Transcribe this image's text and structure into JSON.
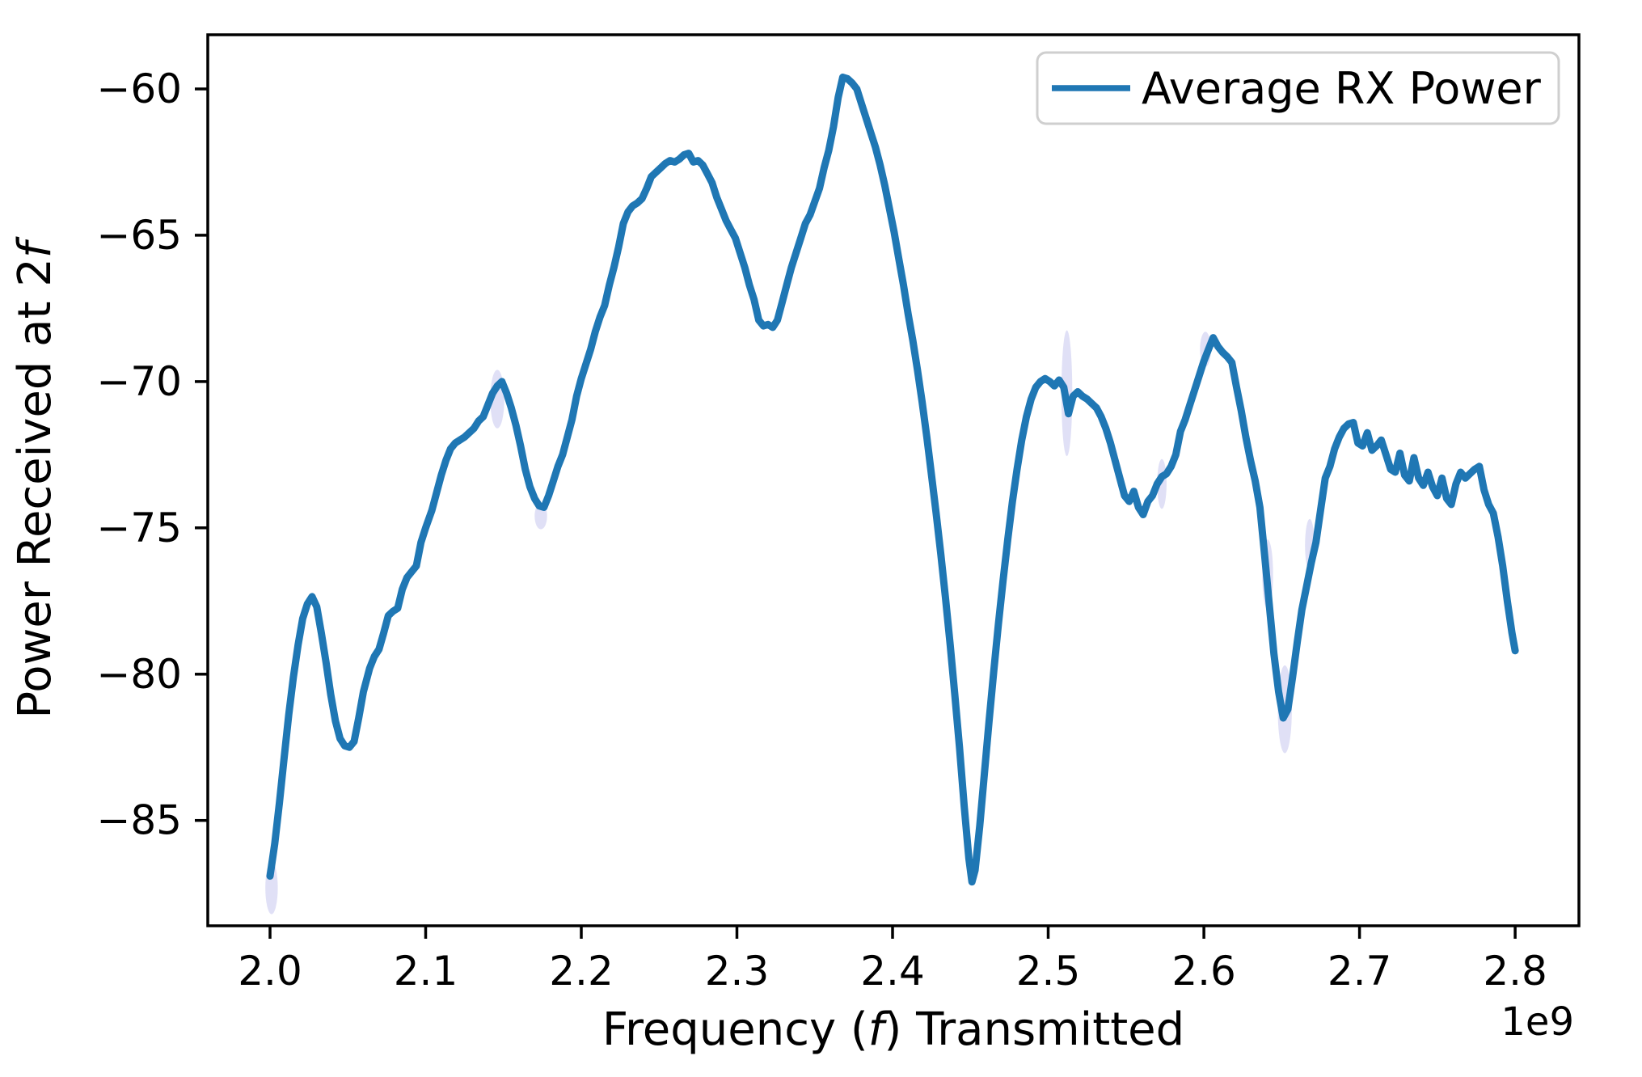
{
  "figure": {
    "background": "#ffffff",
    "xlabel": {
      "prefix": "Frequency (",
      "italic": "f",
      "suffix": ") Transmitted",
      "full": "Frequency (f) Transmitted"
    },
    "ylabel": {
      "prefix": "Power Received at 2",
      "italic": "f",
      "full": "Power Received at 2f"
    },
    "offset_text": "1e9",
    "legend": {
      "label": "Average RX Power",
      "position": "upper right"
    },
    "colors": {
      "line": "#1f77b4",
      "uncertainty_band": "#8e8ee0",
      "axis": "#000000",
      "legend_border": "#cfcfcf",
      "legend_background": "#ffffff"
    }
  },
  "chart_data": {
    "type": "line",
    "title": "",
    "xlabel": "Frequency (f) Transmitted",
    "ylabel": "Power Received at 2f",
    "x_offset_label": "1e9",
    "grid": false,
    "legend_position": "upper right",
    "xlim": [
      1.96,
      2.841
    ],
    "ylim": [
      -88.6,
      -58.15
    ],
    "x_ticks": [
      2.0,
      2.1,
      2.2,
      2.3,
      2.4,
      2.5,
      2.6,
      2.7,
      2.8
    ],
    "y_ticks": [
      -85,
      -80,
      -75,
      -70,
      -65,
      -60
    ],
    "series": [
      {
        "name": "Average RX Power",
        "color": "#1f77b4",
        "points": [
          [
            2.0,
            -86.9
          ],
          [
            2.003,
            -85.8
          ],
          [
            2.006,
            -84.4
          ],
          [
            2.009,
            -82.9
          ],
          [
            2.012,
            -81.4
          ],
          [
            2.015,
            -80.1
          ],
          [
            2.018,
            -79.0
          ],
          [
            2.021,
            -78.1
          ],
          [
            2.024,
            -77.6
          ],
          [
            2.027,
            -77.35
          ],
          [
            2.03,
            -77.7
          ],
          [
            2.033,
            -78.6
          ],
          [
            2.036,
            -79.6
          ],
          [
            2.039,
            -80.7
          ],
          [
            2.042,
            -81.6
          ],
          [
            2.045,
            -82.2
          ],
          [
            2.048,
            -82.45
          ],
          [
            2.051,
            -82.5
          ],
          [
            2.054,
            -82.3
          ],
          [
            2.057,
            -81.5
          ],
          [
            2.06,
            -80.6
          ],
          [
            2.064,
            -79.8
          ],
          [
            2.067,
            -79.4
          ],
          [
            2.07,
            -79.15
          ],
          [
            2.073,
            -78.6
          ],
          [
            2.076,
            -78.0
          ],
          [
            2.079,
            -77.85
          ],
          [
            2.082,
            -77.75
          ],
          [
            2.085,
            -77.1
          ],
          [
            2.088,
            -76.7
          ],
          [
            2.091,
            -76.5
          ],
          [
            2.094,
            -76.3
          ],
          [
            2.097,
            -75.5
          ],
          [
            2.1,
            -75.0
          ],
          [
            2.104,
            -74.4
          ],
          [
            2.107,
            -73.8
          ],
          [
            2.11,
            -73.2
          ],
          [
            2.113,
            -72.7
          ],
          [
            2.116,
            -72.3
          ],
          [
            2.119,
            -72.1
          ],
          [
            2.122,
            -72.0
          ],
          [
            2.125,
            -71.9
          ],
          [
            2.128,
            -71.75
          ],
          [
            2.131,
            -71.6
          ],
          [
            2.134,
            -71.35
          ],
          [
            2.137,
            -71.2
          ],
          [
            2.14,
            -70.8
          ],
          [
            2.143,
            -70.4
          ],
          [
            2.146,
            -70.15
          ],
          [
            2.149,
            -70.0
          ],
          [
            2.152,
            -70.4
          ],
          [
            2.155,
            -70.9
          ],
          [
            2.158,
            -71.5
          ],
          [
            2.161,
            -72.2
          ],
          [
            2.164,
            -73.0
          ],
          [
            2.167,
            -73.6
          ],
          [
            2.17,
            -74.0
          ],
          [
            2.173,
            -74.25
          ],
          [
            2.176,
            -74.3
          ],
          [
            2.179,
            -73.9
          ],
          [
            2.182,
            -73.4
          ],
          [
            2.185,
            -72.9
          ],
          [
            2.188,
            -72.5
          ],
          [
            2.191,
            -71.9
          ],
          [
            2.194,
            -71.3
          ],
          [
            2.197,
            -70.5
          ],
          [
            2.2,
            -69.9
          ],
          [
            2.203,
            -69.4
          ],
          [
            2.206,
            -68.9
          ],
          [
            2.209,
            -68.3
          ],
          [
            2.212,
            -67.8
          ],
          [
            2.215,
            -67.4
          ],
          [
            2.218,
            -66.7
          ],
          [
            2.221,
            -66.1
          ],
          [
            2.224,
            -65.4
          ],
          [
            2.227,
            -64.6
          ],
          [
            2.23,
            -64.2
          ],
          [
            2.233,
            -64.0
          ],
          [
            2.236,
            -63.9
          ],
          [
            2.239,
            -63.75
          ],
          [
            2.242,
            -63.4
          ],
          [
            2.245,
            -63.0
          ],
          [
            2.248,
            -62.85
          ],
          [
            2.251,
            -62.7
          ],
          [
            2.254,
            -62.55
          ],
          [
            2.257,
            -62.45
          ],
          [
            2.26,
            -62.5
          ],
          [
            2.263,
            -62.4
          ],
          [
            2.266,
            -62.25
          ],
          [
            2.269,
            -62.2
          ],
          [
            2.272,
            -62.5
          ],
          [
            2.275,
            -62.45
          ],
          [
            2.278,
            -62.6
          ],
          [
            2.281,
            -62.9
          ],
          [
            2.284,
            -63.2
          ],
          [
            2.287,
            -63.7
          ],
          [
            2.29,
            -64.1
          ],
          [
            2.293,
            -64.5
          ],
          [
            2.296,
            -64.8
          ],
          [
            2.299,
            -65.1
          ],
          [
            2.302,
            -65.6
          ],
          [
            2.305,
            -66.1
          ],
          [
            2.308,
            -66.7
          ],
          [
            2.311,
            -67.2
          ],
          [
            2.314,
            -67.9
          ],
          [
            2.317,
            -68.1
          ],
          [
            2.32,
            -68.05
          ],
          [
            2.323,
            -68.15
          ],
          [
            2.326,
            -67.9
          ],
          [
            2.329,
            -67.3
          ],
          [
            2.332,
            -66.7
          ],
          [
            2.335,
            -66.1
          ],
          [
            2.338,
            -65.6
          ],
          [
            2.341,
            -65.1
          ],
          [
            2.344,
            -64.6
          ],
          [
            2.347,
            -64.3
          ],
          [
            2.35,
            -63.85
          ],
          [
            2.353,
            -63.4
          ],
          [
            2.356,
            -62.7
          ],
          [
            2.359,
            -62.1
          ],
          [
            2.362,
            -61.3
          ],
          [
            2.365,
            -60.3
          ],
          [
            2.368,
            -59.6
          ],
          [
            2.371,
            -59.65
          ],
          [
            2.374,
            -59.8
          ],
          [
            2.377,
            -60.0
          ],
          [
            2.38,
            -60.5
          ],
          [
            2.383,
            -61.0
          ],
          [
            2.386,
            -61.5
          ],
          [
            2.389,
            -62.0
          ],
          [
            2.392,
            -62.6
          ],
          [
            2.395,
            -63.3
          ],
          [
            2.398,
            -64.1
          ],
          [
            2.401,
            -64.9
          ],
          [
            2.404,
            -65.8
          ],
          [
            2.407,
            -66.7
          ],
          [
            2.41,
            -67.7
          ],
          [
            2.413,
            -68.6
          ],
          [
            2.416,
            -69.6
          ],
          [
            2.419,
            -70.7
          ],
          [
            2.422,
            -71.9
          ],
          [
            2.425,
            -73.2
          ],
          [
            2.428,
            -74.5
          ],
          [
            2.431,
            -75.9
          ],
          [
            2.434,
            -77.4
          ],
          [
            2.437,
            -79.0
          ],
          [
            2.44,
            -80.7
          ],
          [
            2.443,
            -82.5
          ],
          [
            2.446,
            -84.5
          ],
          [
            2.449,
            -86.3
          ],
          [
            2.451,
            -87.1
          ],
          [
            2.453,
            -86.7
          ],
          [
            2.456,
            -85.2
          ],
          [
            2.459,
            -83.4
          ],
          [
            2.462,
            -81.6
          ],
          [
            2.465,
            -79.9
          ],
          [
            2.468,
            -78.3
          ],
          [
            2.471,
            -76.8
          ],
          [
            2.474,
            -75.4
          ],
          [
            2.477,
            -74.1
          ],
          [
            2.48,
            -73.0
          ],
          [
            2.483,
            -72.0
          ],
          [
            2.486,
            -71.2
          ],
          [
            2.489,
            -70.6
          ],
          [
            2.492,
            -70.2
          ],
          [
            2.495,
            -70.0
          ],
          [
            2.498,
            -69.9
          ],
          [
            2.501,
            -70.0
          ],
          [
            2.504,
            -70.15
          ],
          [
            2.507,
            -69.95
          ],
          [
            2.51,
            -70.2
          ],
          [
            2.513,
            -71.1
          ],
          [
            2.516,
            -70.5
          ],
          [
            2.519,
            -70.35
          ],
          [
            2.522,
            -70.5
          ],
          [
            2.525,
            -70.6
          ],
          [
            2.528,
            -70.75
          ],
          [
            2.531,
            -70.9
          ],
          [
            2.534,
            -71.2
          ],
          [
            2.537,
            -71.6
          ],
          [
            2.54,
            -72.1
          ],
          [
            2.543,
            -72.7
          ],
          [
            2.546,
            -73.3
          ],
          [
            2.549,
            -73.9
          ],
          [
            2.552,
            -74.1
          ],
          [
            2.555,
            -73.75
          ],
          [
            2.558,
            -74.3
          ],
          [
            2.561,
            -74.55
          ],
          [
            2.564,
            -74.1
          ],
          [
            2.567,
            -73.9
          ],
          [
            2.57,
            -73.5
          ],
          [
            2.573,
            -73.25
          ],
          [
            2.576,
            -73.15
          ],
          [
            2.579,
            -72.9
          ],
          [
            2.582,
            -72.5
          ],
          [
            2.585,
            -71.7
          ],
          [
            2.588,
            -71.3
          ],
          [
            2.591,
            -70.8
          ],
          [
            2.594,
            -70.3
          ],
          [
            2.597,
            -69.8
          ],
          [
            2.6,
            -69.3
          ],
          [
            2.603,
            -68.9
          ],
          [
            2.606,
            -68.5
          ],
          [
            2.609,
            -68.8
          ],
          [
            2.612,
            -69.0
          ],
          [
            2.615,
            -69.15
          ],
          [
            2.618,
            -69.35
          ],
          [
            2.621,
            -70.2
          ],
          [
            2.624,
            -71.0
          ],
          [
            2.627,
            -71.9
          ],
          [
            2.63,
            -72.7
          ],
          [
            2.633,
            -73.4
          ],
          [
            2.636,
            -74.3
          ],
          [
            2.639,
            -75.9
          ],
          [
            2.642,
            -77.6
          ],
          [
            2.645,
            -79.3
          ],
          [
            2.648,
            -80.6
          ],
          [
            2.651,
            -81.5
          ],
          [
            2.654,
            -81.2
          ],
          [
            2.657,
            -80.1
          ],
          [
            2.66,
            -78.9
          ],
          [
            2.663,
            -77.8
          ],
          [
            2.666,
            -77.0
          ],
          [
            2.669,
            -76.2
          ],
          [
            2.672,
            -75.5
          ],
          [
            2.675,
            -74.4
          ],
          [
            2.678,
            -73.3
          ],
          [
            2.681,
            -72.9
          ],
          [
            2.684,
            -72.3
          ],
          [
            2.687,
            -71.9
          ],
          [
            2.69,
            -71.6
          ],
          [
            2.693,
            -71.45
          ],
          [
            2.696,
            -71.4
          ],
          [
            2.699,
            -72.1
          ],
          [
            2.702,
            -72.2
          ],
          [
            2.705,
            -71.75
          ],
          [
            2.708,
            -72.35
          ],
          [
            2.711,
            -72.2
          ],
          [
            2.714,
            -72.0
          ],
          [
            2.717,
            -72.5
          ],
          [
            2.72,
            -73.0
          ],
          [
            2.723,
            -73.1
          ],
          [
            2.726,
            -72.45
          ],
          [
            2.729,
            -73.2
          ],
          [
            2.732,
            -73.4
          ],
          [
            2.735,
            -72.6
          ],
          [
            2.738,
            -73.3
          ],
          [
            2.741,
            -73.55
          ],
          [
            2.744,
            -73.1
          ],
          [
            2.747,
            -73.6
          ],
          [
            2.75,
            -73.9
          ],
          [
            2.753,
            -73.3
          ],
          [
            2.756,
            -74.0
          ],
          [
            2.759,
            -74.2
          ],
          [
            2.762,
            -73.5
          ],
          [
            2.765,
            -73.1
          ],
          [
            2.768,
            -73.3
          ],
          [
            2.771,
            -73.15
          ],
          [
            2.774,
            -73.0
          ],
          [
            2.777,
            -72.9
          ],
          [
            2.78,
            -73.7
          ],
          [
            2.783,
            -74.2
          ],
          [
            2.786,
            -74.5
          ],
          [
            2.789,
            -75.3
          ],
          [
            2.792,
            -76.3
          ],
          [
            2.795,
            -77.5
          ],
          [
            2.798,
            -78.6
          ],
          [
            2.8,
            -79.2
          ]
        ]
      }
    ],
    "uncertainty_band_segments": [
      {
        "f": 2.001,
        "v": -87.3,
        "rf": 0.004,
        "rv": 0.9
      },
      {
        "f": 2.146,
        "v": -70.6,
        "rf": 0.0045,
        "rv": 1.0
      },
      {
        "f": 2.174,
        "v": -74.6,
        "rf": 0.004,
        "rv": 0.45
      },
      {
        "f": 2.512,
        "v": -70.4,
        "rf": 0.0035,
        "rv": 2.15
      },
      {
        "f": 2.573,
        "v": -73.5,
        "rf": 0.003,
        "rv": 0.85
      },
      {
        "f": 2.601,
        "v": -68.9,
        "rf": 0.0035,
        "rv": 0.6
      },
      {
        "f": 2.641,
        "v": -76.6,
        "rf": 0.0035,
        "rv": 1.2
      },
      {
        "f": 2.652,
        "v": -81.2,
        "rf": 0.0045,
        "rv": 1.5
      },
      {
        "f": 2.668,
        "v": -75.6,
        "rf": 0.003,
        "rv": 0.9
      }
    ]
  }
}
